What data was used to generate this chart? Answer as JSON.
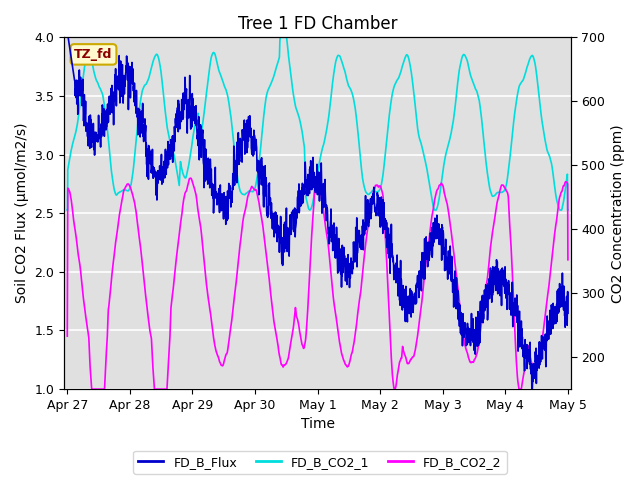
{
  "title": "Tree 1 FD Chamber",
  "xlabel": "Time",
  "ylabel_left": "Soil CO2 Flux (μmol/m2/s)",
  "ylabel_right": "CO2 Concentration (ppm)",
  "ylim_left": [
    1.0,
    4.0
  ],
  "ylim_right": [
    150,
    700
  ],
  "flux_color": "#0000CC",
  "co2_1_color": "#00DDDD",
  "co2_2_color": "#FF00FF",
  "legend_labels": [
    "FD_B_Flux",
    "FD_B_CO2_1",
    "FD_B_CO2_2"
  ],
  "annotation_text": "TZ_fd",
  "annotation_color": "#8B0000",
  "annotation_bg": "#FFFACD",
  "annotation_border": "#CCAA00",
  "background_color": "#E0E0E0",
  "outer_bg": "#FFFFFF",
  "tick_labels_x": [
    "Apr 27",
    "Apr 28",
    "Apr 29",
    "Apr 30",
    "May 1",
    "May 2",
    "May 3",
    "May 4",
    "May 5"
  ],
  "tick_positions_x": [
    0,
    1,
    2,
    3,
    4,
    5,
    6,
    7,
    8
  ],
  "xlim": [
    -0.05,
    8.05
  ],
  "grid_color": "#FFFFFF",
  "title_fontsize": 12,
  "axis_label_fontsize": 10,
  "tick_fontsize": 9
}
